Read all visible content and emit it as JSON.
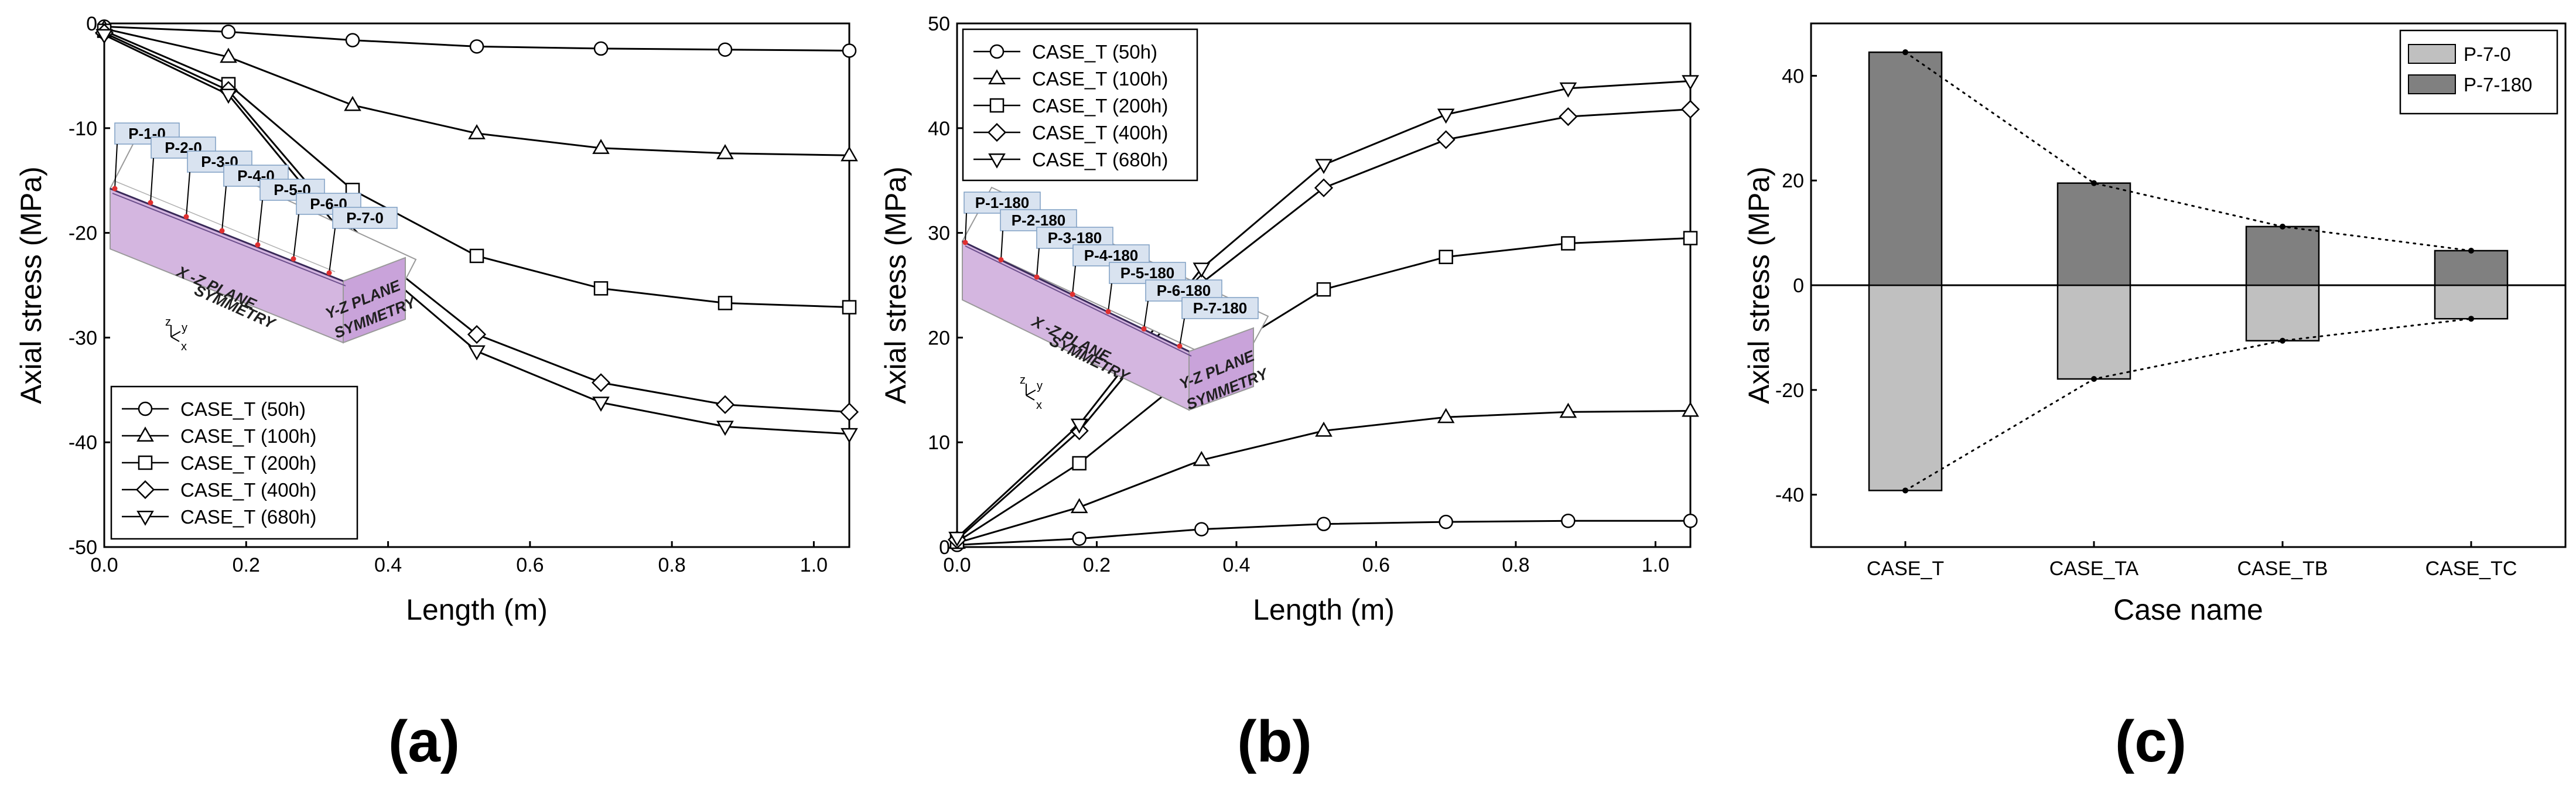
{
  "colors": {
    "axis": "#000000",
    "bar_p70": "#c0c0c0",
    "bar_p7180": "#808080",
    "inset_face": "#d4b6e0",
    "inset_side": "#c9a3da",
    "label_box": "#d9e3f0",
    "red_point": "#e03030"
  },
  "panels": {
    "a": {
      "label": "(a)"
    },
    "b": {
      "label": "(b)"
    },
    "c": {
      "label": "(c)"
    }
  },
  "insets": {
    "a": {
      "points": [
        "P-1-0",
        "P-2-0",
        "P-3-0",
        "P-4-0",
        "P-5-0",
        "P-6-0",
        "P-7-0"
      ],
      "xz_plane": "X -Z PLANE",
      "yz_plane": "Y-Z PLANE",
      "symmetry": "SYMMETRY",
      "axes": {
        "z": "z",
        "y": "y",
        "x": "x"
      }
    },
    "b": {
      "points": [
        "P-1-180",
        "P-2-180",
        "P-3-180",
        "P-4-180",
        "P-5-180",
        "P-6-180",
        "P-7-180"
      ],
      "xz_plane": "X -Z PLANE",
      "yz_plane": "Y-Z PLANE",
      "symmetry": "SYMMETRY",
      "axes": {
        "z": "z",
        "y": "y",
        "x": "x"
      }
    }
  },
  "chart_data": [
    {
      "id": "a",
      "type": "line",
      "xlabel": "Length (m)",
      "ylabel": "Axial stress (MPa)",
      "xlim": [
        0,
        1.05
      ],
      "ylim": [
        -50,
        0
      ],
      "xticks": [
        0.0,
        0.2,
        0.4,
        0.6,
        0.8,
        1.0
      ],
      "xticklabels": [
        "0.0",
        "0.2",
        "0.4",
        "0.6",
        "0.8",
        "1.0"
      ],
      "yticks": [
        0,
        -10,
        -20,
        -30,
        -40,
        -50
      ],
      "yticklabels": [
        "0",
        "-10",
        "-20",
        "-30",
        "-40",
        "-50"
      ],
      "legend_position": "bottom-left",
      "series": [
        {
          "name": "CASE_T (50h)",
          "marker": "circle",
          "x": [
            0,
            0.175,
            0.35,
            0.525,
            0.7,
            0.875,
            1.05
          ],
          "y": [
            -0.3,
            -0.8,
            -1.6,
            -2.2,
            -2.4,
            -2.5,
            -2.6
          ]
        },
        {
          "name": "CASE_T (100h)",
          "marker": "triangle-up",
          "x": [
            0,
            0.175,
            0.35,
            0.525,
            0.7,
            0.875,
            1.05
          ],
          "y": [
            -0.5,
            -3.2,
            -7.8,
            -10.5,
            -11.9,
            -12.4,
            -12.6
          ]
        },
        {
          "name": "CASE_T (200h)",
          "marker": "square",
          "x": [
            0,
            0.175,
            0.35,
            0.525,
            0.7,
            0.875,
            1.05
          ],
          "y": [
            -0.7,
            -5.8,
            -15.9,
            -22.2,
            -25.3,
            -26.7,
            -27.1
          ]
        },
        {
          "name": "CASE_T (400h)",
          "marker": "diamond",
          "x": [
            0,
            0.175,
            0.35,
            0.525,
            0.7,
            0.875,
            1.05
          ],
          "y": [
            -0.9,
            -6.4,
            -20.3,
            -29.7,
            -34.3,
            -36.4,
            -37.1
          ]
        },
        {
          "name": "CASE_T (680h)",
          "marker": "triangle-down",
          "x": [
            0,
            0.175,
            0.35,
            0.525,
            0.7,
            0.875,
            1.05
          ],
          "y": [
            -1.1,
            -6.8,
            -21.2,
            -31.3,
            -36.2,
            -38.5,
            -39.2
          ]
        }
      ]
    },
    {
      "id": "b",
      "type": "line",
      "xlabel": "Length (m)",
      "ylabel": "Axial stress (MPa)",
      "xlim": [
        0,
        1.05
      ],
      "ylim": [
        0,
        50
      ],
      "xticks": [
        0.0,
        0.2,
        0.4,
        0.6,
        0.8,
        1.0
      ],
      "xticklabels": [
        "0.0",
        "0.2",
        "0.4",
        "0.6",
        "0.8",
        "1.0"
      ],
      "yticks": [
        0,
        10,
        20,
        30,
        40,
        50
      ],
      "yticklabels": [
        "0",
        "10",
        "20",
        "30",
        "40",
        "50"
      ],
      "legend_position": "top-left",
      "series": [
        {
          "name": "CASE_T (50h)",
          "marker": "circle",
          "x": [
            0,
            0.175,
            0.35,
            0.525,
            0.7,
            0.875,
            1.05
          ],
          "y": [
            0.2,
            0.8,
            1.7,
            2.2,
            2.4,
            2.5,
            2.5
          ]
        },
        {
          "name": "CASE_T (100h)",
          "marker": "triangle-up",
          "x": [
            0,
            0.175,
            0.35,
            0.525,
            0.7,
            0.875,
            1.05
          ],
          "y": [
            0.4,
            3.8,
            8.3,
            11.1,
            12.4,
            12.9,
            13.0
          ]
        },
        {
          "name": "CASE_T (200h)",
          "marker": "square",
          "x": [
            0,
            0.175,
            0.35,
            0.525,
            0.7,
            0.875,
            1.05
          ],
          "y": [
            0.5,
            8.0,
            17.4,
            24.6,
            27.7,
            29.0,
            29.5
          ]
        },
        {
          "name": "CASE_T (400h)",
          "marker": "diamond",
          "x": [
            0,
            0.175,
            0.35,
            0.525,
            0.7,
            0.875,
            1.05
          ],
          "y": [
            0.7,
            11.1,
            25.2,
            34.3,
            38.9,
            41.1,
            41.8
          ]
        },
        {
          "name": "CASE_T (680h)",
          "marker": "triangle-down",
          "x": [
            0,
            0.175,
            0.35,
            0.525,
            0.7,
            0.875,
            1.05
          ],
          "y": [
            0.9,
            11.7,
            26.6,
            36.5,
            41.3,
            43.8,
            44.5
          ]
        }
      ]
    },
    {
      "id": "c",
      "type": "bar",
      "xlabel": "Case name",
      "ylabel": "Axial stress (MPa)",
      "categories": [
        "CASE_T",
        "CASE_TA",
        "CASE_TB",
        "CASE_TC"
      ],
      "ylim": [
        -50,
        50
      ],
      "yticks": [
        -40,
        -20,
        0,
        20,
        40
      ],
      "yticklabels": [
        "-40",
        "-20",
        "0",
        "20",
        "40"
      ],
      "legend_position": "top-right",
      "series": [
        {
          "name": "P-7-0",
          "values": [
            -39.2,
            -17.9,
            -10.6,
            -6.4
          ],
          "color": "#c0c0c0"
        },
        {
          "name": "P-7-180",
          "values": [
            44.5,
            19.5,
            11.2,
            6.6
          ],
          "color": "#808080"
        }
      ]
    }
  ]
}
